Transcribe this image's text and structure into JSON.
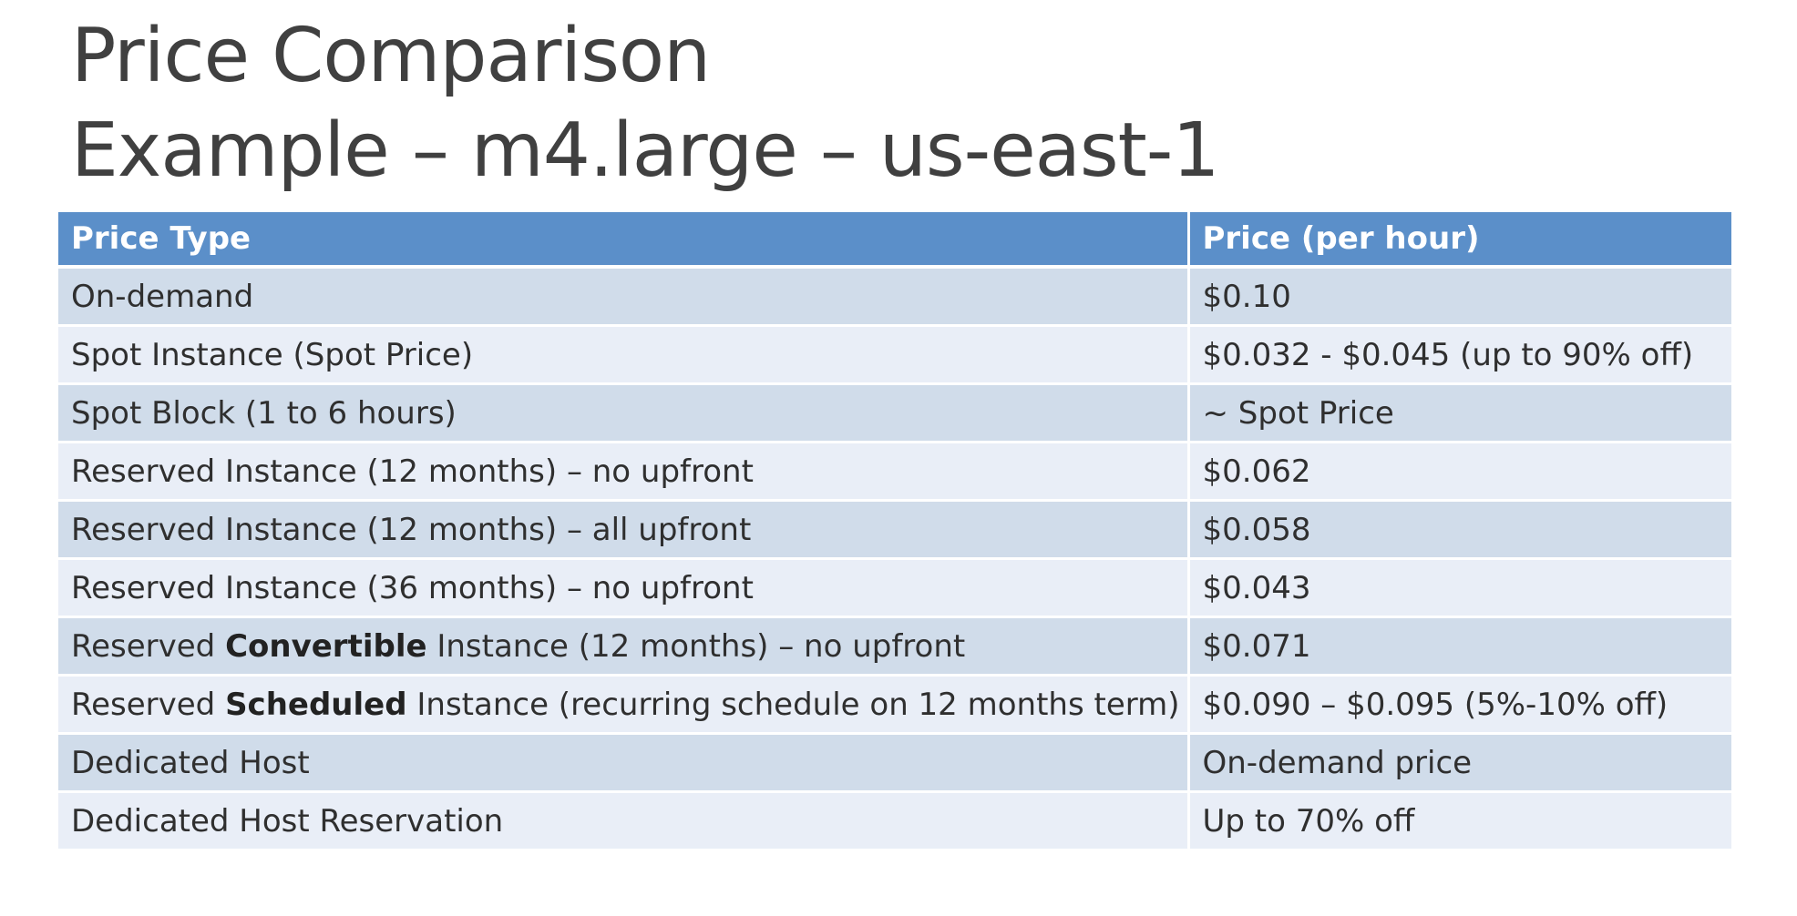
{
  "slide": {
    "title_line1": "Price Comparison",
    "title_line2": "Example – m4.large – us-east-1"
  },
  "table": {
    "headers": [
      "Price Type",
      "Price (per hour)"
    ],
    "rows": [
      {
        "type": "On-demand",
        "price": "$0.10"
      },
      {
        "type": "Spot Instance (Spot Price)",
        "price": "$0.032 - $0.045 (up to 90% off)"
      },
      {
        "type": "Spot Block (1 to 6 hours)",
        "price": "~ Spot Price"
      },
      {
        "type": "Reserved Instance (12 months) – no upfront",
        "price": "$0.062"
      },
      {
        "type": "Reserved Instance (12 months) – all upfront",
        "price": "$0.058"
      },
      {
        "type": "Reserved Instance (36 months) – no upfront",
        "price": "$0.043"
      },
      {
        "type_pre": "Reserved ",
        "type_bold": "Convertible",
        "type_post": " Instance (12 months) – no upfront",
        "price": "$0.071"
      },
      {
        "type_pre": "Reserved ",
        "type_bold": "Scheduled",
        "type_post": " Instance (recurring schedule on 12 months term)",
        "price": "$0.090 – $0.095 (5%-10% off)"
      },
      {
        "type": "Dedicated Host",
        "price": "On-demand price"
      },
      {
        "type": "Dedicated Host Reservation",
        "price": "Up to 70% off"
      }
    ]
  },
  "colors": {
    "header_bg": "#5b8fc9",
    "row_dark": "#d0dcea",
    "row_light": "#e9eef7"
  }
}
